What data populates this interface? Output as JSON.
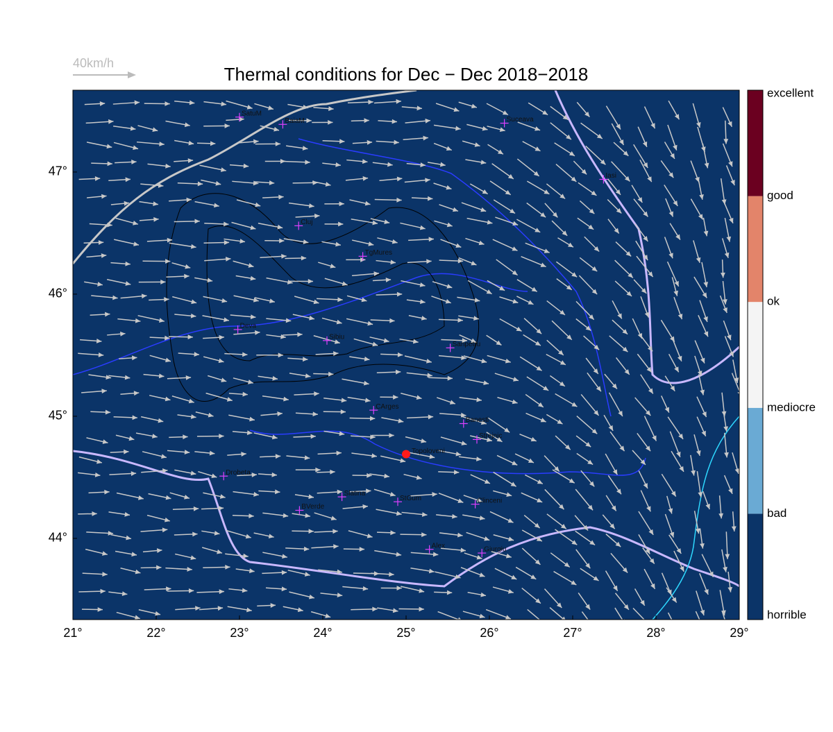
{
  "map": {
    "title": "Thermal conditions for Dec − Dec  2018−2018",
    "scale_label": "40km/h",
    "xlim": [
      21,
      29
    ],
    "ylim": [
      43.335,
      47.67
    ],
    "xticks": [
      {
        "value": 21,
        "label": "21°"
      },
      {
        "value": 22,
        "label": "22°"
      },
      {
        "value": 23,
        "label": "23°"
      },
      {
        "value": 24,
        "label": "24°"
      },
      {
        "value": 25,
        "label": "25°"
      },
      {
        "value": 26,
        "label": "26°"
      },
      {
        "value": 27,
        "label": "27°"
      },
      {
        "value": 28,
        "label": "28°"
      },
      {
        "value": 29,
        "label": "29°"
      }
    ],
    "yticks": [
      {
        "value": 44,
        "label": "44°"
      },
      {
        "value": 45,
        "label": "45°"
      },
      {
        "value": 46,
        "label": "46°"
      },
      {
        "value": 47,
        "label": "47°"
      }
    ],
    "background_color": "#0b3468",
    "cities": [
      {
        "name": "SatuM",
        "lon": 23.0,
        "lat": 47.45
      },
      {
        "name": "BaiaM",
        "lon": 23.52,
        "lat": 47.39
      },
      {
        "name": "Suceava",
        "lon": 26.18,
        "lat": 47.4
      },
      {
        "name": "Iasi",
        "lon": 27.37,
        "lat": 46.94
      },
      {
        "name": "Cluj",
        "lon": 23.71,
        "lat": 46.56
      },
      {
        "name": "TgMures",
        "lon": 24.48,
        "lat": 46.31
      },
      {
        "name": "Deva",
        "lon": 22.98,
        "lat": 45.71
      },
      {
        "name": "Sibiu",
        "lon": 24.05,
        "lat": 45.62
      },
      {
        "name": "Sanpetru",
        "lon": 25.53,
        "lat": 45.56
      },
      {
        "name": "CArges",
        "lon": 24.61,
        "lat": 45.05
      },
      {
        "name": "Banesti",
        "lon": 25.69,
        "lat": 44.94
      },
      {
        "name": "Strejnic",
        "lon": 25.85,
        "lat": 44.81
      },
      {
        "name": "Drobeta",
        "lon": 22.81,
        "lat": 44.51
      },
      {
        "name": "Slatina",
        "lon": 24.23,
        "lat": 44.34
      },
      {
        "name": "StGum",
        "lon": 24.9,
        "lat": 44.3
      },
      {
        "name": "Clinceni",
        "lon": 25.83,
        "lat": 44.28
      },
      {
        "name": "BVerde",
        "lon": 23.72,
        "lat": 44.23
      },
      {
        "name": "Alex",
        "lon": 25.28,
        "lat": 43.91
      },
      {
        "name": "Giurgiu",
        "lon": 25.91,
        "lat": 43.88
      }
    ],
    "highlight": {
      "name": "Topoloveni",
      "lon": 25.0,
      "lat": 44.69,
      "color": "#ff1a1a"
    },
    "colorbar": {
      "labels": [
        "horrible",
        "bad",
        "mediocre",
        "ok",
        "good",
        "excellent"
      ],
      "colors": [
        "#0b3468",
        "#6aaad4",
        "#f4f4f4",
        "#e3846a",
        "#6b0020"
      ]
    }
  }
}
